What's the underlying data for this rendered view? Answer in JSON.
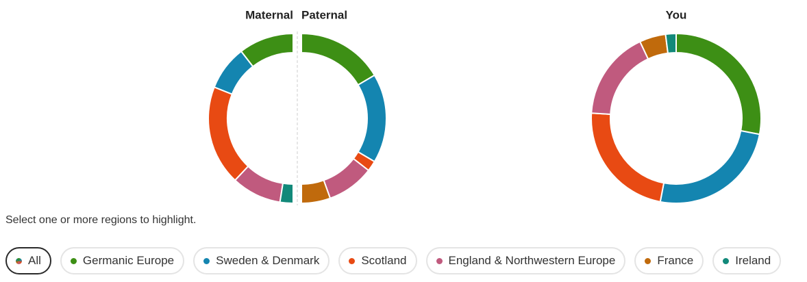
{
  "chart_data": [
    {
      "type": "donut",
      "half": "left",
      "title": "Maternal",
      "categories": [
        "Germanic Europe",
        "Sweden & Denmark",
        "Scotland",
        "England & Northwestern Europe",
        "Ireland"
      ],
      "values": [
        21,
        17,
        38,
        19,
        5
      ],
      "colors": [
        "#3d8f15",
        "#1485b0",
        "#e84a13",
        "#c05a7e",
        "#12897a"
      ]
    },
    {
      "type": "donut",
      "half": "right",
      "title": "Paternal",
      "categories": [
        "Germanic Europe",
        "Sweden & Denmark",
        "Scotland",
        "England & Northwestern Europe",
        "France"
      ],
      "values": [
        33,
        34,
        4,
        18,
        11
      ],
      "colors": [
        "#3d8f15",
        "#1485b0",
        "#e84a13",
        "#c05a7e",
        "#c06a0c"
      ]
    },
    {
      "type": "donut",
      "half": "full",
      "title": "You",
      "categories": [
        "Germanic Europe",
        "Sweden & Denmark",
        "Scotland",
        "England & Northwestern Europe",
        "France",
        "Ireland"
      ],
      "values": [
        28,
        25,
        23,
        17,
        5,
        2
      ],
      "colors": [
        "#3d8f15",
        "#1485b0",
        "#e84a13",
        "#c05a7e",
        "#c06a0c",
        "#12897a"
      ]
    }
  ],
  "instruction": "Select one or more regions to highlight.",
  "filters": [
    {
      "label": "All"
    },
    {
      "label": "Germanic Europe",
      "color": "#3d8f15"
    },
    {
      "label": "Sweden & Denmark",
      "color": "#1485b0"
    },
    {
      "label": "Scotland",
      "color": "#e84a13"
    },
    {
      "label": "England & Northwestern Europe",
      "color": "#c05a7e"
    },
    {
      "label": "France",
      "color": "#c06a0c"
    },
    {
      "label": "Ireland",
      "color": "#12897a"
    }
  ],
  "selected_filter": 0
}
